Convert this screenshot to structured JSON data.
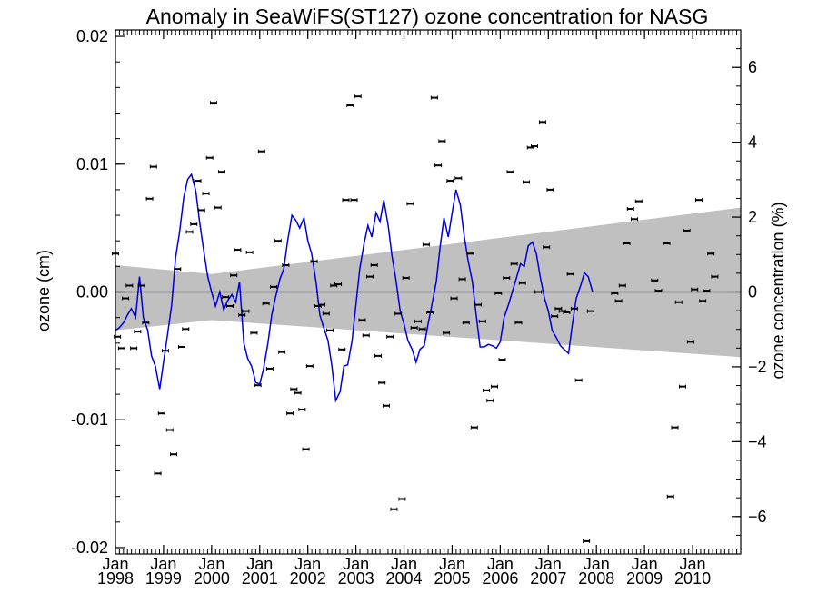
{
  "chart_data": {
    "type": "scatter",
    "title": "Anomaly in SeaWiFS(ST127) ozone concentration for NASG",
    "ylabel": "ozone (cm)",
    "y2label": "ozone concentration (%)",
    "xlim": [
      1998.0,
      2011.0
    ],
    "ylim": [
      -0.0205,
      0.0205
    ],
    "y2lim": [
      -7.0,
      7.0
    ],
    "y_ticks": [
      {
        "v": 0.02,
        "label": "0.02"
      },
      {
        "v": 0.01,
        "label": "0.01"
      },
      {
        "v": 0.0,
        "label": "0.00"
      },
      {
        "v": -0.01,
        "label": "-0.01"
      },
      {
        "v": -0.02,
        "label": "-0.02"
      }
    ],
    "y2_ticks": [
      {
        "v": 6,
        "label": "6"
      },
      {
        "v": 4,
        "label": "4"
      },
      {
        "v": 2,
        "label": "2"
      },
      {
        "v": 0,
        "label": "0"
      },
      {
        "v": -2,
        "label": "−2"
      },
      {
        "v": -4,
        "label": "−4"
      },
      {
        "v": -6,
        "label": "−6"
      }
    ],
    "x_ticks": [
      {
        "v": 1998,
        "month": "Jan",
        "year": "1998"
      },
      {
        "v": 1999,
        "month": "Jan",
        "year": "1999"
      },
      {
        "v": 2000,
        "month": "Jan",
        "year": "2000"
      },
      {
        "v": 2001,
        "month": "Jan",
        "year": "2001"
      },
      {
        "v": 2002,
        "month": "Jan",
        "year": "2002"
      },
      {
        "v": 2003,
        "month": "Jan",
        "year": "2003"
      },
      {
        "v": 2004,
        "month": "Jan",
        "year": "2004"
      },
      {
        "v": 2005,
        "month": "Jan",
        "year": "2005"
      },
      {
        "v": 2006,
        "month": "Jan",
        "year": "2006"
      },
      {
        "v": 2007,
        "month": "Jan",
        "year": "2007"
      },
      {
        "v": 2008,
        "month": "Jan",
        "year": "2008"
      },
      {
        "v": 2009,
        "month": "Jan",
        "year": "2009"
      },
      {
        "v": 2010,
        "month": "Jan",
        "year": "2010"
      }
    ],
    "zero_line": 0.0,
    "uncertainty_band": {
      "color": "#c0c0c0",
      "upper": [
        [
          1998.0,
          0.0021
        ],
        [
          2000.0,
          0.0014
        ],
        [
          2011.0,
          0.0066
        ]
      ],
      "lower": [
        [
          1998.0,
          -0.003
        ],
        [
          2000.0,
          -0.0022
        ],
        [
          2011.0,
          -0.0051
        ]
      ]
    },
    "series": [
      {
        "type": "monthly_points",
        "color": "#000000",
        "points": [
          [
            1998.0,
            0.003
          ],
          [
            1998.04,
            -0.0035
          ],
          [
            1998.13,
            -0.0044
          ],
          [
            1998.21,
            -0.0005
          ],
          [
            1998.29,
            0.0005
          ],
          [
            1998.38,
            -0.0044
          ],
          [
            1998.46,
            -0.0031
          ],
          [
            1998.54,
            0.0005
          ],
          [
            1998.63,
            -0.0024
          ],
          [
            1998.71,
            0.0073
          ],
          [
            1998.79,
            0.0098
          ],
          [
            1998.88,
            -0.0142
          ],
          [
            1998.96,
            -0.0095
          ],
          [
            1999.04,
            -0.0046
          ],
          [
            1999.13,
            -0.0108
          ],
          [
            1999.21,
            -0.0127
          ],
          [
            1999.29,
            0.0018
          ],
          [
            1999.38,
            -0.0043
          ],
          [
            1999.46,
            -0.0029
          ],
          [
            1999.54,
            0.0047
          ],
          [
            1999.63,
            0.0053
          ],
          [
            1999.71,
            0.0087
          ],
          [
            1999.79,
            0.0064
          ],
          [
            1999.88,
            0.0077
          ],
          [
            1999.96,
            0.0105
          ],
          [
            2000.04,
            0.0148
          ],
          [
            2000.13,
            0.0066
          ],
          [
            2000.21,
            0.0094
          ],
          [
            2000.29,
            -0.0004
          ],
          [
            2000.38,
            -0.0011
          ],
          [
            2000.46,
            0.0013
          ],
          [
            2000.54,
            0.0033
          ],
          [
            2000.63,
            -0.0018
          ],
          [
            2000.71,
            -0.0015
          ],
          [
            2000.79,
            0.0031
          ],
          [
            2000.88,
            -0.0032
          ],
          [
            2000.96,
            -0.0073
          ],
          [
            2001.04,
            0.011
          ],
          [
            2001.13,
            -0.0009
          ],
          [
            2001.21,
            -0.006
          ],
          [
            2001.29,
            0.0004
          ],
          [
            2001.38,
            0.004
          ],
          [
            2001.46,
            -0.0047
          ],
          [
            2001.54,
            0.0021
          ],
          [
            2001.63,
            -0.0095
          ],
          [
            2001.71,
            -0.0076
          ],
          [
            2001.79,
            -0.0079
          ],
          [
            2001.88,
            -0.0092
          ],
          [
            2001.96,
            -0.0123
          ],
          [
            2002.04,
            -0.0058
          ],
          [
            2002.13,
            0.0024
          ],
          [
            2002.21,
            -0.0011
          ],
          [
            2002.29,
            -0.001
          ],
          [
            2002.38,
            -0.0017
          ],
          [
            2002.46,
            -0.003
          ],
          [
            2002.54,
            0.0005
          ],
          [
            2002.63,
            0.0006
          ],
          [
            2002.71,
            -0.0045
          ],
          [
            2002.79,
            0.0072
          ],
          [
            2002.88,
            0.0146
          ],
          [
            2002.96,
            0.0072
          ],
          [
            2003.04,
            0.0153
          ],
          [
            2003.13,
            -0.0022
          ],
          [
            2003.21,
            -0.0034
          ],
          [
            2003.29,
            0.0012
          ],
          [
            2003.38,
            0.0021
          ],
          [
            2003.46,
            -0.005
          ],
          [
            2003.54,
            -0.0071
          ],
          [
            2003.63,
            -0.0089
          ],
          [
            2003.71,
            -0.0035
          ],
          [
            2003.79,
            -0.017
          ],
          [
            2003.88,
            -0.0017
          ],
          [
            2003.96,
            -0.0162
          ],
          [
            2004.04,
            0.0011
          ],
          [
            2004.13,
            0.0069
          ],
          [
            2004.21,
            -0.0028
          ],
          [
            2004.29,
            -0.0023
          ],
          [
            2004.38,
            -0.0029
          ],
          [
            2004.46,
            0.0037
          ],
          [
            2004.54,
            -0.0016
          ],
          [
            2004.63,
            0.0152
          ],
          [
            2004.71,
            0.0099
          ],
          [
            2004.79,
            0.0118
          ],
          [
            2004.88,
            -0.0032
          ],
          [
            2004.96,
            0.0087
          ],
          [
            2005.04,
            -0.0005
          ],
          [
            2005.13,
            0.0089
          ],
          [
            2005.21,
            0.001
          ],
          [
            2005.29,
            -0.0024
          ],
          [
            2005.38,
            0.003
          ],
          [
            2005.46,
            -0.0106
          ],
          [
            2005.54,
            -0.001
          ],
          [
            2005.63,
            -0.0023
          ],
          [
            2005.71,
            -0.0077
          ],
          [
            2005.79,
            -0.0085
          ],
          [
            2005.88,
            -0.0074
          ],
          [
            2005.96,
            -0.0001
          ],
          [
            2006.04,
            -0.0053
          ],
          [
            2006.13,
            0.0011
          ],
          [
            2006.21,
            0.0094
          ],
          [
            2006.29,
            0.0022
          ],
          [
            2006.38,
            -0.0024
          ],
          [
            2006.46,
            0.0007
          ],
          [
            2006.54,
            0.0086
          ],
          [
            2006.63,
            0.0113
          ],
          [
            2006.71,
            0.0114
          ],
          [
            2006.79,
            0.0
          ],
          [
            2006.88,
            0.0133
          ],
          [
            2006.96,
            0.0035
          ],
          [
            2007.04,
            0.008
          ],
          [
            2007.13,
            -0.0019
          ],
          [
            2007.21,
            -0.0013
          ],
          [
            2007.29,
            -0.0015
          ],
          [
            2007.38,
            -0.0016
          ],
          [
            2007.46,
            0.0014
          ],
          [
            2007.54,
            -0.0013
          ],
          [
            2007.63,
            -0.0069
          ],
          [
            2007.79,
            -0.0195
          ],
          [
            2007.88,
            -0.0015
          ],
          [
            2008.38,
            -0.0001
          ],
          [
            2008.46,
            -0.0007
          ],
          [
            2008.54,
            0.0005
          ],
          [
            2008.63,
            0.0038
          ],
          [
            2008.71,
            0.0065
          ],
          [
            2008.79,
            0.0057
          ],
          [
            2008.88,
            0.0071
          ],
          [
            2009.21,
            0.0009
          ],
          [
            2009.29,
            0.0001
          ],
          [
            2009.46,
            0.0038
          ],
          [
            2009.54,
            -0.016
          ],
          [
            2009.63,
            -0.0106
          ],
          [
            2009.71,
            -0.0008
          ],
          [
            2009.79,
            -0.0074
          ],
          [
            2009.88,
            0.0048
          ],
          [
            2009.96,
            -0.0039
          ],
          [
            2010.04,
            0.0002
          ],
          [
            2010.13,
            0.0072
          ],
          [
            2010.21,
            -0.0007
          ],
          [
            2010.29,
            0.0001
          ],
          [
            2010.38,
            0.003
          ],
          [
            2010.46,
            0.0012
          ]
        ]
      },
      {
        "type": "smoothed_line",
        "color": "#0000dd",
        "points": [
          [
            1998.0,
            -0.003
          ],
          [
            1998.08,
            -0.0028
          ],
          [
            1998.17,
            -0.0024
          ],
          [
            1998.25,
            -0.0018
          ],
          [
            1998.33,
            -0.0013
          ],
          [
            1998.42,
            -0.002
          ],
          [
            1998.5,
            0.0012
          ],
          [
            1998.58,
            -0.002
          ],
          [
            1998.67,
            -0.003
          ],
          [
            1998.75,
            -0.005
          ],
          [
            1998.83,
            -0.0058
          ],
          [
            1998.92,
            -0.0076
          ],
          [
            1999.0,
            -0.0055
          ],
          [
            1999.08,
            -0.0034
          ],
          [
            1999.17,
            -0.001
          ],
          [
            1999.25,
            0.0027
          ],
          [
            1999.33,
            0.0046
          ],
          [
            1999.42,
            0.0074
          ],
          [
            1999.5,
            0.0088
          ],
          [
            1999.58,
            0.0092
          ],
          [
            1999.67,
            0.0079
          ],
          [
            1999.75,
            0.0055
          ],
          [
            1999.83,
            0.0034
          ],
          [
            1999.92,
            0.0012
          ],
          [
            2000.0,
            0.0
          ],
          [
            2000.08,
            -0.0011
          ],
          [
            2000.17,
            0.0
          ],
          [
            2000.25,
            -0.0014
          ],
          [
            2000.33,
            -0.0007
          ],
          [
            2000.42,
            -0.0002
          ],
          [
            2000.5,
            -0.0008
          ],
          [
            2000.58,
            0.0008
          ],
          [
            2000.67,
            -0.004
          ],
          [
            2000.75,
            -0.0052
          ],
          [
            2000.83,
            -0.0058
          ],
          [
            2000.92,
            -0.0071
          ],
          [
            2001.0,
            -0.0072
          ],
          [
            2001.08,
            -0.006
          ],
          [
            2001.17,
            -0.004
          ],
          [
            2001.25,
            -0.0018
          ],
          [
            2001.33,
            -0.0004
          ],
          [
            2001.42,
            0.001
          ],
          [
            2001.5,
            0.0018
          ],
          [
            2001.58,
            0.004
          ],
          [
            2001.67,
            0.006
          ],
          [
            2001.75,
            0.0056
          ],
          [
            2001.83,
            0.005
          ],
          [
            2001.92,
            0.0058
          ],
          [
            2002.0,
            0.004
          ],
          [
            2002.08,
            0.003
          ],
          [
            2002.17,
            0.0008
          ],
          [
            2002.25,
            -0.0018
          ],
          [
            2002.33,
            -0.0028
          ],
          [
            2002.42,
            -0.0038
          ],
          [
            2002.5,
            -0.0058
          ],
          [
            2002.58,
            -0.0085
          ],
          [
            2002.67,
            -0.0078
          ],
          [
            2002.75,
            -0.0058
          ],
          [
            2002.83,
            -0.0057
          ],
          [
            2002.92,
            -0.0038
          ],
          [
            2003.0,
            -0.001
          ],
          [
            2003.08,
            0.0018
          ],
          [
            2003.17,
            0.0038
          ],
          [
            2003.25,
            0.0052
          ],
          [
            2003.33,
            0.0043
          ],
          [
            2003.42,
            0.0062
          ],
          [
            2003.5,
            0.0055
          ],
          [
            2003.58,
            0.0072
          ],
          [
            2003.67,
            0.0052
          ],
          [
            2003.75,
            0.0028
          ],
          [
            2003.83,
            0.001
          ],
          [
            2003.92,
            -0.0015
          ],
          [
            2004.0,
            -0.0025
          ],
          [
            2004.08,
            -0.0038
          ],
          [
            2004.17,
            -0.0045
          ],
          [
            2004.25,
            -0.0055
          ],
          [
            2004.33,
            -0.0045
          ],
          [
            2004.42,
            -0.0042
          ],
          [
            2004.5,
            -0.0025
          ],
          [
            2004.58,
            -0.001
          ],
          [
            2004.67,
            0.0008
          ],
          [
            2004.75,
            0.0035
          ],
          [
            2004.83,
            0.0058
          ],
          [
            2004.92,
            0.0043
          ],
          [
            2005.0,
            0.0062
          ],
          [
            2005.08,
            0.008
          ],
          [
            2005.17,
            0.0068
          ],
          [
            2005.25,
            0.0044
          ],
          [
            2005.33,
            0.0025
          ],
          [
            2005.42,
            0.0008
          ],
          [
            2005.5,
            -0.0018
          ],
          [
            2005.58,
            -0.0043
          ],
          [
            2005.67,
            -0.0043
          ],
          [
            2005.75,
            -0.0041
          ],
          [
            2005.83,
            -0.0042
          ],
          [
            2005.92,
            -0.0044
          ],
          [
            2006.0,
            -0.0039
          ],
          [
            2006.08,
            -0.002
          ],
          [
            2006.17,
            -0.001
          ],
          [
            2006.25,
            0.0
          ],
          [
            2006.33,
            0.001
          ],
          [
            2006.42,
            0.0022
          ],
          [
            2006.5,
            0.002
          ],
          [
            2006.58,
            0.0036
          ],
          [
            2006.67,
            0.0039
          ],
          [
            2006.75,
            0.003
          ],
          [
            2006.83,
            0.0012
          ],
          [
            2006.92,
            -0.0005
          ],
          [
            2007.0,
            -0.0015
          ],
          [
            2007.08,
            -0.003
          ],
          [
            2007.17,
            -0.0036
          ],
          [
            2007.25,
            -0.0042
          ],
          [
            2007.33,
            -0.0045
          ],
          [
            2007.42,
            -0.0048
          ],
          [
            2007.5,
            -0.0025
          ],
          [
            2007.58,
            -0.0005
          ],
          [
            2007.67,
            0.0005
          ],
          [
            2007.75,
            0.0015
          ],
          [
            2007.83,
            0.0012
          ],
          [
            2007.92,
            0.0
          ]
        ]
      }
    ]
  }
}
